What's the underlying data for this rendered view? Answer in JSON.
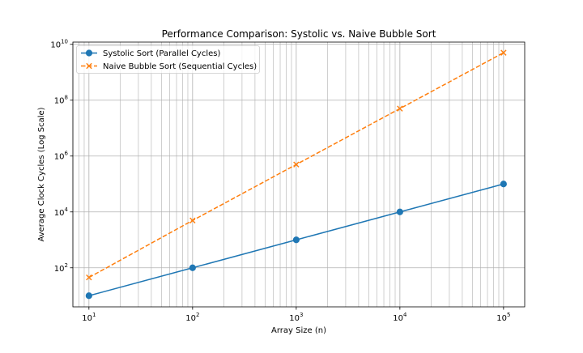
{
  "chart_data": {
    "type": "line",
    "title": "Performance Comparison: Systolic vs. Naive Bubble Sort",
    "xlabel": "Array Size (n)",
    "ylabel": "Average Clock Cycles (Log Scale)",
    "xscale": "log",
    "yscale": "log",
    "xlim": [
      7,
      160000
    ],
    "ylim": [
      4,
      12000000000
    ],
    "grid": "both (major and minor)",
    "legend_position": "top-left",
    "x_ticks": [
      {
        "value": 10,
        "base": "10",
        "exp": "1"
      },
      {
        "value": 100,
        "base": "10",
        "exp": "2"
      },
      {
        "value": 1000,
        "base": "10",
        "exp": "3"
      },
      {
        "value": 10000,
        "base": "10",
        "exp": "4"
      },
      {
        "value": 100000,
        "base": "10",
        "exp": "5"
      }
    ],
    "y_ticks": [
      {
        "value": 100,
        "base": "10",
        "exp": "2"
      },
      {
        "value": 10000,
        "base": "10",
        "exp": "4"
      },
      {
        "value": 1000000,
        "base": "10",
        "exp": "6"
      },
      {
        "value": 100000000,
        "base": "10",
        "exp": "8"
      },
      {
        "value": 10000000000,
        "base": "10",
        "exp": "10"
      }
    ],
    "x": [
      10,
      100,
      1000,
      10000,
      100000
    ],
    "series": [
      {
        "name": "Systolic Sort (Parallel Cycles)",
        "values": [
          10,
          100,
          1000,
          10000,
          100000
        ],
        "color": "#1f77b4",
        "marker": "circle",
        "line_style": "solid"
      },
      {
        "name": "Naive Bubble Sort (Sequential Cycles)",
        "values": [
          45,
          4950,
          499500,
          49995000,
          4999950000
        ],
        "color": "#ff7f0e",
        "marker": "x",
        "line_style": "dashed"
      }
    ]
  }
}
